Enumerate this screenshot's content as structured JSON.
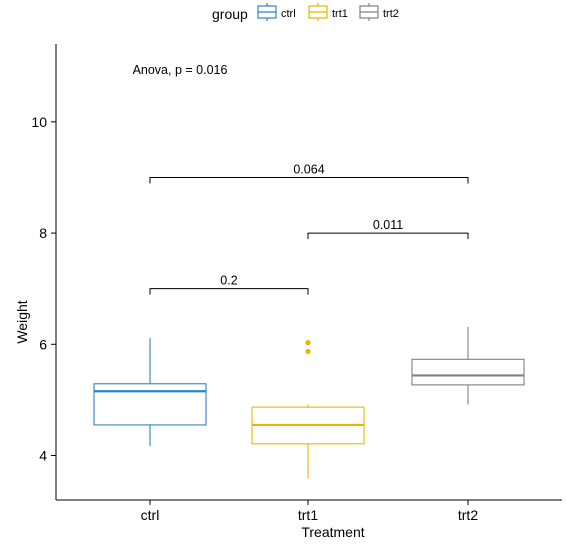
{
  "chart_data": {
    "type": "box",
    "xlabel": "Treatment",
    "ylabel": "Weight",
    "categories": [
      "ctrl",
      "trt1",
      "trt2"
    ],
    "ylim": [
      3.2,
      11.4
    ],
    "yticks": [
      4,
      6,
      8,
      10
    ],
    "ytick_labels": [
      "4",
      "6",
      "8",
      "10"
    ],
    "grid": false,
    "legend": {
      "title": "group",
      "position": "top",
      "entries": [
        "ctrl",
        "trt1",
        "trt2"
      ]
    },
    "series": [
      {
        "name": "ctrl",
        "color": "#2E86C1",
        "whisker_low": 4.17,
        "q1": 4.55,
        "median": 5.155,
        "q3": 5.29,
        "whisker_high": 6.11,
        "outliers": []
      },
      {
        "name": "trt1",
        "color": "#E7B800",
        "whisker_low": 3.59,
        "q1": 4.21,
        "median": 4.55,
        "q3": 4.87,
        "whisker_high": 4.92,
        "outliers": [
          5.87,
          6.03
        ]
      },
      {
        "name": "trt2",
        "color": "#808080",
        "whisker_low": 4.92,
        "q1": 5.27,
        "median": 5.44,
        "q3": 5.73,
        "whisker_high": 6.31,
        "outliers": []
      }
    ],
    "comparisons": [
      {
        "from": "ctrl",
        "to": "trt1",
        "y": 7.0,
        "label": "0.2"
      },
      {
        "from": "trt1",
        "to": "trt2",
        "y": 8.0,
        "label": "0.011"
      },
      {
        "from": "ctrl",
        "to": "trt2",
        "y": 9.0,
        "label": "0.064"
      }
    ],
    "annotation": {
      "text": "Anova, p = 0.016",
      "x": "ctrl",
      "y": 10.95
    }
  }
}
